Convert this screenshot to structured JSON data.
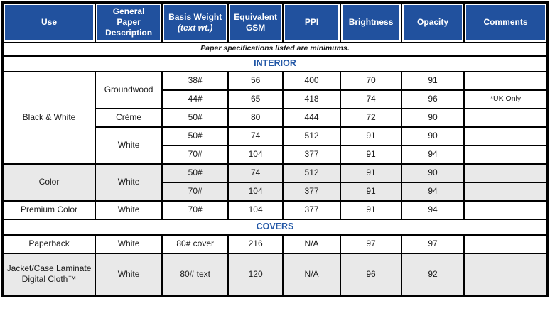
{
  "colors": {
    "header_background": "#21519E",
    "header_text": "#FFFFFF",
    "section_title_text": "#2257A6",
    "shaded_row_background": "#E9E9E9",
    "grid_border": "#000000"
  },
  "table": {
    "columns": [
      {
        "label": "Use",
        "sublabel": ""
      },
      {
        "label": "General Paper Description",
        "sublabel": ""
      },
      {
        "label": "Basis Weight",
        "sublabel": "(text wt.)"
      },
      {
        "label": "Equivalent GSM",
        "sublabel": ""
      },
      {
        "label": "PPI",
        "sublabel": ""
      },
      {
        "label": "Brightness",
        "sublabel": ""
      },
      {
        "label": "Opacity",
        "sublabel": ""
      },
      {
        "label": "Comments",
        "sublabel": ""
      }
    ],
    "note": "Paper specifications listed are minimums.",
    "sections": [
      {
        "title": "INTERIOR",
        "rows": [
          {
            "shade": false,
            "cells": [
              {
                "text": "Black & White",
                "rowspan": 5
              },
              {
                "text": "Groundwood",
                "rowspan": 2
              },
              {
                "text": "38#"
              },
              {
                "text": "56"
              },
              {
                "text": "400"
              },
              {
                "text": "70"
              },
              {
                "text": "91"
              },
              {
                "text": ""
              }
            ]
          },
          {
            "shade": false,
            "cells": [
              {
                "text": "44#"
              },
              {
                "text": "65"
              },
              {
                "text": "418"
              },
              {
                "text": "74"
              },
              {
                "text": "96"
              },
              {
                "text": "*UK Only",
                "small": true
              }
            ]
          },
          {
            "shade": false,
            "cells": [
              {
                "text": "Crème"
              },
              {
                "text": "50#"
              },
              {
                "text": "80"
              },
              {
                "text": "444"
              },
              {
                "text": "72"
              },
              {
                "text": "90"
              },
              {
                "text": ""
              }
            ]
          },
          {
            "shade": false,
            "cells": [
              {
                "text": "White",
                "rowspan": 2
              },
              {
                "text": "50#"
              },
              {
                "text": "74"
              },
              {
                "text": "512"
              },
              {
                "text": "91"
              },
              {
                "text": "90"
              },
              {
                "text": ""
              }
            ]
          },
          {
            "shade": false,
            "cells": [
              {
                "text": "70#"
              },
              {
                "text": "104"
              },
              {
                "text": "377"
              },
              {
                "text": "91"
              },
              {
                "text": "94"
              },
              {
                "text": ""
              }
            ]
          },
          {
            "shade": true,
            "cells": [
              {
                "text": "Color",
                "rowspan": 2
              },
              {
                "text": "White",
                "rowspan": 2
              },
              {
                "text": "50#"
              },
              {
                "text": "74"
              },
              {
                "text": "512"
              },
              {
                "text": "91"
              },
              {
                "text": "90"
              },
              {
                "text": ""
              }
            ]
          },
          {
            "shade": true,
            "cells": [
              {
                "text": "70#"
              },
              {
                "text": "104"
              },
              {
                "text": "377"
              },
              {
                "text": "91"
              },
              {
                "text": "94"
              },
              {
                "text": ""
              }
            ]
          },
          {
            "shade": false,
            "cells": [
              {
                "text": "Premium Color"
              },
              {
                "text": "White"
              },
              {
                "text": "70#"
              },
              {
                "text": "104"
              },
              {
                "text": "377"
              },
              {
                "text": "91"
              },
              {
                "text": "94"
              },
              {
                "text": ""
              }
            ]
          }
        ]
      },
      {
        "title": "COVERS",
        "rows": [
          {
            "shade": false,
            "cells": [
              {
                "text": "Paperback"
              },
              {
                "text": "White"
              },
              {
                "text": "80# cover"
              },
              {
                "text": "216"
              },
              {
                "text": "N/A"
              },
              {
                "text": "97"
              },
              {
                "text": "97"
              },
              {
                "text": ""
              }
            ]
          },
          {
            "shade": true,
            "tall": true,
            "cells": [
              {
                "text": "Jacket/Case Laminate Digital Cloth™"
              },
              {
                "text": "White"
              },
              {
                "text": "80# text"
              },
              {
                "text": "120"
              },
              {
                "text": "N/A"
              },
              {
                "text": "96"
              },
              {
                "text": "92"
              },
              {
                "text": ""
              }
            ]
          }
        ]
      }
    ]
  }
}
